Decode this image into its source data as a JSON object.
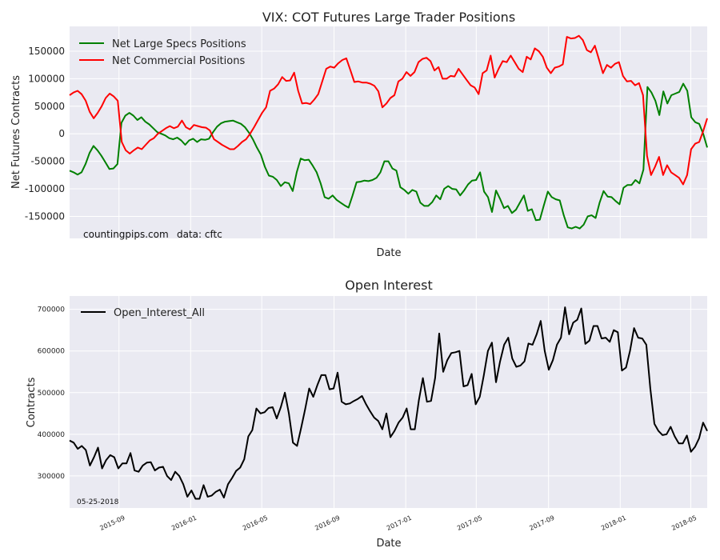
{
  "chart_data": [
    {
      "type": "line",
      "title": "VIX: COT Futures Large Trader Positions",
      "xlabel": "Date",
      "ylabel": "Net Futures Contracts",
      "ylim": [
        -190000,
        195000
      ],
      "yticks": [
        -150000,
        -100000,
        -50000,
        0,
        50000,
        100000,
        150000
      ],
      "x_start": "2015-06-09",
      "x_end": "2018-05-29",
      "grid": true,
      "legend": "top-left",
      "annotations": [
        "countingpips.com",
        "data: cftc"
      ],
      "series": [
        {
          "name": "Net Large Specs Positions",
          "color": "#008000",
          "values": [
            -67000,
            -70000,
            -74000,
            -70000,
            -55000,
            -35000,
            -22000,
            -30000,
            -40000,
            -52000,
            -64000,
            -63000,
            -55000,
            20000,
            33000,
            38000,
            33000,
            25000,
            30000,
            22000,
            17000,
            10000,
            3000,
            0,
            -3000,
            -8000,
            -10000,
            -7000,
            -12000,
            -20000,
            -12000,
            -9000,
            -15000,
            -10000,
            -11000,
            -9000,
            3000,
            13000,
            19000,
            22000,
            23000,
            24000,
            21000,
            18000,
            12000,
            2000,
            -10000,
            -25000,
            -38000,
            -60000,
            -76000,
            -78000,
            -84000,
            -95000,
            -88000,
            -90000,
            -104000,
            -70000,
            -45000,
            -48000,
            -47000,
            -58000,
            -70000,
            -90000,
            -115000,
            -118000,
            -112000,
            -120000,
            -125000,
            -130000,
            -134000,
            -112000,
            -88000,
            -87000,
            -85000,
            -86000,
            -84000,
            -80000,
            -70000,
            -50000,
            -50000,
            -63000,
            -67000,
            -97000,
            -102000,
            -109000,
            -102000,
            -105000,
            -125000,
            -131000,
            -131000,
            -124000,
            -112000,
            -119000,
            -100000,
            -95000,
            -100000,
            -101000,
            -112000,
            -103000,
            -92000,
            -85000,
            -84000,
            -70000,
            -105000,
            -115000,
            -142000,
            -103000,
            -118000,
            -135000,
            -131000,
            -144000,
            -138000,
            -125000,
            -112000,
            -140000,
            -137000,
            -157000,
            -156000,
            -130000,
            -105000,
            -115000,
            -119000,
            -121000,
            -148000,
            -170000,
            -172000,
            -169000,
            -172000,
            -165000,
            -150000,
            -148000,
            -153000,
            -125000,
            -104000,
            -114000,
            -115000,
            -122000,
            -128000,
            -98000,
            -93000,
            -93000,
            -84000,
            -90000,
            -65000,
            85000,
            75000,
            60000,
            34000,
            77000,
            55000,
            70000,
            73000,
            76000,
            91000,
            78000,
            30000,
            21000,
            18000,
            0,
            -25000
          ]
        },
        {
          "name": "Net Commercial Positions",
          "color": "#ff0000",
          "values": [
            70000,
            75000,
            78000,
            72000,
            60000,
            40000,
            28000,
            38000,
            50000,
            65000,
            73000,
            68000,
            60000,
            -15000,
            -30000,
            -36000,
            -30000,
            -25000,
            -28000,
            -20000,
            -12000,
            -8000,
            0,
            5000,
            10000,
            14000,
            10000,
            13000,
            24000,
            12000,
            8000,
            16000,
            14000,
            12000,
            11000,
            6000,
            -10000,
            -15000,
            -20000,
            -24000,
            -28000,
            -28000,
            -22000,
            -15000,
            -10000,
            0,
            12000,
            25000,
            38000,
            48000,
            78000,
            82000,
            90000,
            103000,
            96000,
            97000,
            111000,
            78000,
            55000,
            56000,
            54000,
            62000,
            72000,
            95000,
            118000,
            122000,
            120000,
            128000,
            134000,
            137000,
            116000,
            94000,
            95000,
            93000,
            93000,
            91000,
            87000,
            77000,
            48000,
            55000,
            65000,
            70000,
            95000,
            100000,
            112000,
            105000,
            112000,
            130000,
            136000,
            138000,
            132000,
            115000,
            121000,
            100000,
            100000,
            105000,
            104000,
            118000,
            108000,
            98000,
            88000,
            84000,
            72000,
            110000,
            115000,
            142000,
            102000,
            118000,
            132000,
            130000,
            142000,
            130000,
            118000,
            112000,
            140000,
            135000,
            155000,
            150000,
            140000,
            120000,
            110000,
            120000,
            122000,
            126000,
            176000,
            173000,
            174000,
            178000,
            170000,
            152000,
            148000,
            160000,
            135000,
            110000,
            125000,
            120000,
            127000,
            130000,
            105000,
            95000,
            96000,
            88000,
            92000,
            70000,
            -40000,
            -75000,
            -60000,
            -42000,
            -75000,
            -57000,
            -70000,
            -75000,
            -80000,
            -92000,
            -75000,
            -28000,
            -18000,
            -15000,
            5000,
            28000
          ]
        }
      ]
    },
    {
      "type": "line",
      "title": "Open Interest",
      "xlabel": "Date",
      "ylabel": "Contracts",
      "ylim": [
        223000,
        732000
      ],
      "yticks": [
        300000,
        400000,
        500000,
        600000,
        700000
      ],
      "x_start": "2015-06-09",
      "x_end": "2018-05-29",
      "xticks": [
        "2015-09",
        "2016-01",
        "2016-05",
        "2016-09",
        "2017-01",
        "2017-05",
        "2017-09",
        "2018-01",
        "2018-05"
      ],
      "grid": true,
      "legend": "top-left",
      "annotations": [
        "05-25-2018"
      ],
      "series": [
        {
          "name": "Open_Interest_All",
          "color": "#000000",
          "values": [
            385000,
            380000,
            365000,
            372000,
            362000,
            325000,
            345000,
            368000,
            318000,
            338000,
            350000,
            345000,
            318000,
            330000,
            330000,
            355000,
            313000,
            310000,
            325000,
            332000,
            333000,
            313000,
            320000,
            322000,
            300000,
            290000,
            310000,
            300000,
            280000,
            250000,
            265000,
            245000,
            245000,
            278000,
            250000,
            253000,
            262000,
            267000,
            248000,
            280000,
            295000,
            312000,
            320000,
            340000,
            395000,
            410000,
            462000,
            450000,
            453000,
            463000,
            465000,
            438000,
            465000,
            500000,
            450000,
            380000,
            372000,
            415000,
            460000,
            510000,
            490000,
            518000,
            542000,
            542000,
            508000,
            510000,
            548000,
            478000,
            472000,
            474000,
            480000,
            485000,
            492000,
            472000,
            455000,
            440000,
            432000,
            412000,
            450000,
            393000,
            408000,
            428000,
            440000,
            462000,
            412000,
            412000,
            482000,
            535000,
            478000,
            480000,
            535000,
            642000,
            550000,
            578000,
            595000,
            597000,
            600000,
            515000,
            518000,
            545000,
            472000,
            490000,
            542000,
            600000,
            620000,
            525000,
            575000,
            615000,
            632000,
            582000,
            562000,
            565000,
            575000,
            618000,
            615000,
            640000,
            672000,
            600000,
            555000,
            578000,
            615000,
            632000,
            705000,
            640000,
            668000,
            675000,
            702000,
            617000,
            625000,
            660000,
            660000,
            630000,
            632000,
            622000,
            650000,
            645000,
            553000,
            560000,
            600000,
            655000,
            632000,
            630000,
            615000,
            510000,
            425000,
            408000,
            398000,
            400000,
            418000,
            395000,
            378000,
            378000,
            397000,
            358000,
            370000,
            390000,
            428000,
            408000
          ]
        }
      ]
    }
  ]
}
